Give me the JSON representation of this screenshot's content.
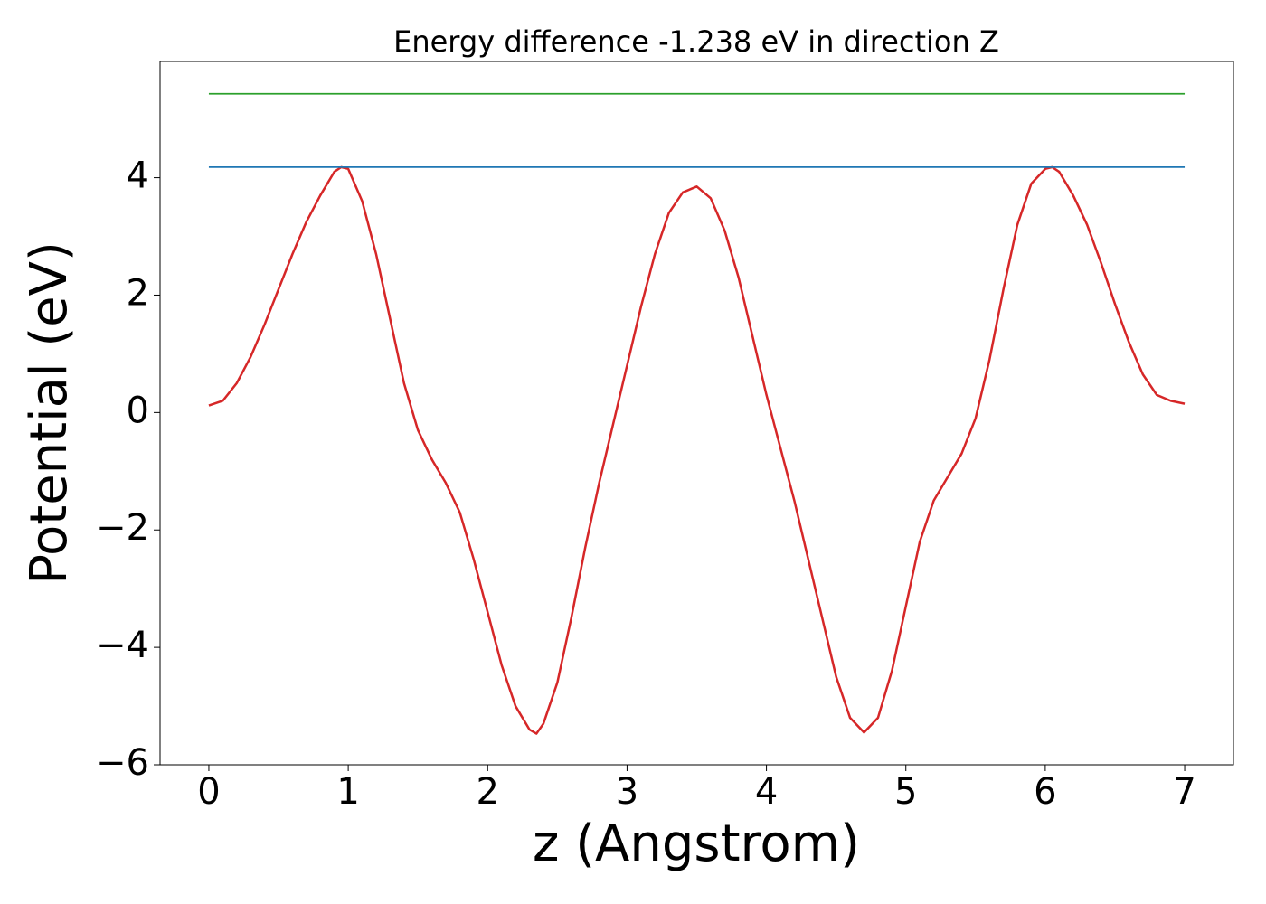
{
  "chart_data": {
    "type": "line",
    "title": "Energy difference -1.238 eV in direction Z",
    "x_label": "z (Angstrom)",
    "y_label": "Potential (eV)",
    "xlim": [
      -0.35,
      7.35
    ],
    "ylim": [
      -6.0,
      5.98
    ],
    "xticks": [
      0,
      1,
      2,
      3,
      4,
      5,
      6,
      7
    ],
    "yticks": [
      {
        "value": -6,
        "label": "−6"
      },
      {
        "value": -4,
        "label": "−4"
      },
      {
        "value": -2,
        "label": "−2"
      },
      0,
      2,
      4
    ],
    "grid": false,
    "series": [
      {
        "color": "#d62728",
        "x": [
          0,
          0.1,
          0.2,
          0.3,
          0.4,
          0.5,
          0.6,
          0.7,
          0.8,
          0.9,
          0.95,
          1.0,
          1.1,
          1.2,
          1.3,
          1.4,
          1.5,
          1.6,
          1.7,
          1.8,
          1.9,
          2.0,
          2.1,
          2.2,
          2.3,
          2.35,
          2.4,
          2.5,
          2.6,
          2.7,
          2.8,
          2.9,
          3.0,
          3.1,
          3.2,
          3.3,
          3.4,
          3.5,
          3.6,
          3.7,
          3.8,
          3.9,
          4.0,
          4.1,
          4.2,
          4.3,
          4.4,
          4.5,
          4.6,
          4.7,
          4.8,
          4.9,
          5.0,
          5.1,
          5.2,
          5.3,
          5.4,
          5.5,
          5.6,
          5.7,
          5.8,
          5.9,
          6.0,
          6.05,
          6.1,
          6.2,
          6.3,
          6.4,
          6.5,
          6.6,
          6.7,
          6.8,
          6.9,
          7.0
        ],
        "values": [
          0.12,
          0.2,
          0.5,
          0.95,
          1.5,
          2.1,
          2.7,
          3.25,
          3.7,
          4.1,
          4.18,
          4.15,
          3.6,
          2.7,
          1.6,
          0.5,
          -0.3,
          -0.8,
          -1.2,
          -1.7,
          -2.5,
          -3.4,
          -4.3,
          -5.0,
          -5.4,
          -5.47,
          -5.3,
          -4.6,
          -3.5,
          -2.3,
          -1.2,
          -0.2,
          0.8,
          1.8,
          2.7,
          3.4,
          3.75,
          3.85,
          3.65,
          3.1,
          2.3,
          1.3,
          0.3,
          -0.6,
          -1.5,
          -2.5,
          -3.5,
          -4.5,
          -5.2,
          -5.45,
          -5.2,
          -4.4,
          -3.3,
          -2.2,
          -1.5,
          -1.1,
          -0.7,
          -0.1,
          0.9,
          2.1,
          3.2,
          3.9,
          4.15,
          4.18,
          4.1,
          3.7,
          3.2,
          2.55,
          1.85,
          1.2,
          0.65,
          0.3,
          0.2,
          0.15
        ]
      },
      {
        "color": "#1f77b4",
        "x": [
          0,
          7
        ],
        "values": [
          4.18,
          4.18
        ]
      },
      {
        "color": "#2ca02c",
        "x": [
          0,
          7
        ],
        "values": [
          5.43,
          5.43
        ]
      }
    ]
  }
}
